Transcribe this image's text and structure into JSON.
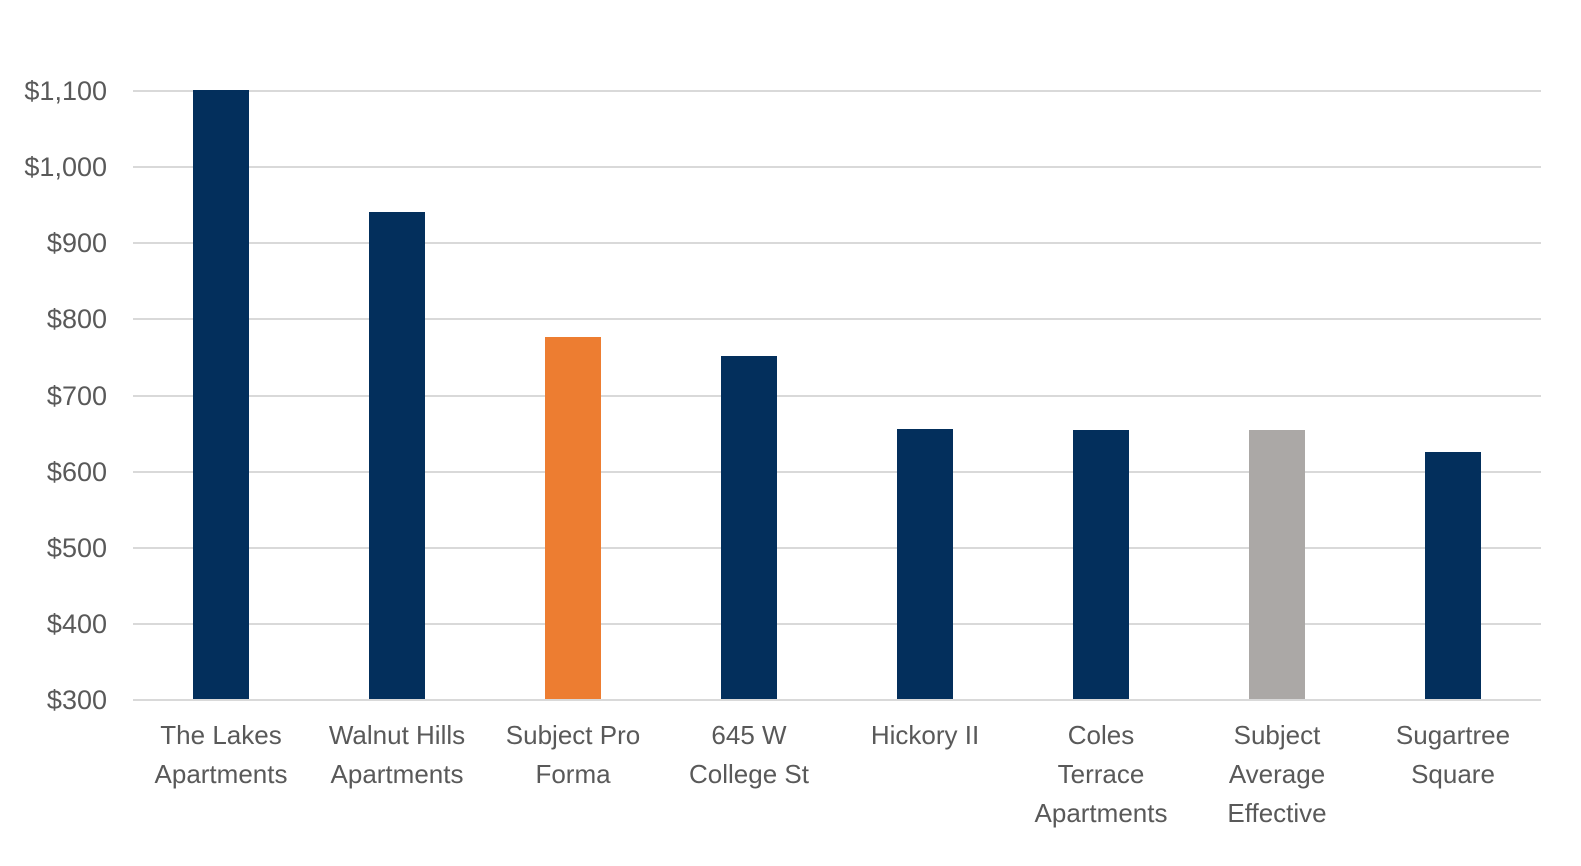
{
  "chart_data": {
    "type": "bar",
    "title": "",
    "xlabel": "",
    "ylabel": "",
    "categories": [
      "The Lakes\nApartments",
      "Walnut Hills\nApartments",
      "Subject Pro\nForma",
      "645 W\nCollege St",
      "Hickory II",
      "Coles\nTerrace\nApartments",
      "Subject\nAverage\nEffective",
      "Sugartree\nSquare"
    ],
    "values": [
      1100,
      940,
      775,
      750,
      655,
      653,
      654,
      625
    ],
    "bar_color_roles": [
      "navy",
      "navy",
      "orange",
      "navy",
      "navy",
      "navy",
      "gray",
      "navy"
    ],
    "palette": {
      "navy": "#032F5C",
      "orange": "#ED7D31",
      "gray": "#ABA8A6"
    },
    "ylim": [
      300,
      1100
    ],
    "ytick_step": 100,
    "yticks": [
      {
        "value": 300,
        "label": "$300"
      },
      {
        "value": 400,
        "label": "$400"
      },
      {
        "value": 500,
        "label": "$500"
      },
      {
        "value": 600,
        "label": "$600"
      },
      {
        "value": 700,
        "label": "$700"
      },
      {
        "value": 800,
        "label": "$800"
      },
      {
        "value": 900,
        "label": "$900"
      },
      {
        "value": 1000,
        "label": "$1,000"
      },
      {
        "value": 1100,
        "label": "$1,100"
      }
    ],
    "grid": "horizontal",
    "legend": "none",
    "background_color": "#FFFFFF",
    "gridline_color": "#D9D9D9",
    "axis_text_color": "#595959"
  }
}
